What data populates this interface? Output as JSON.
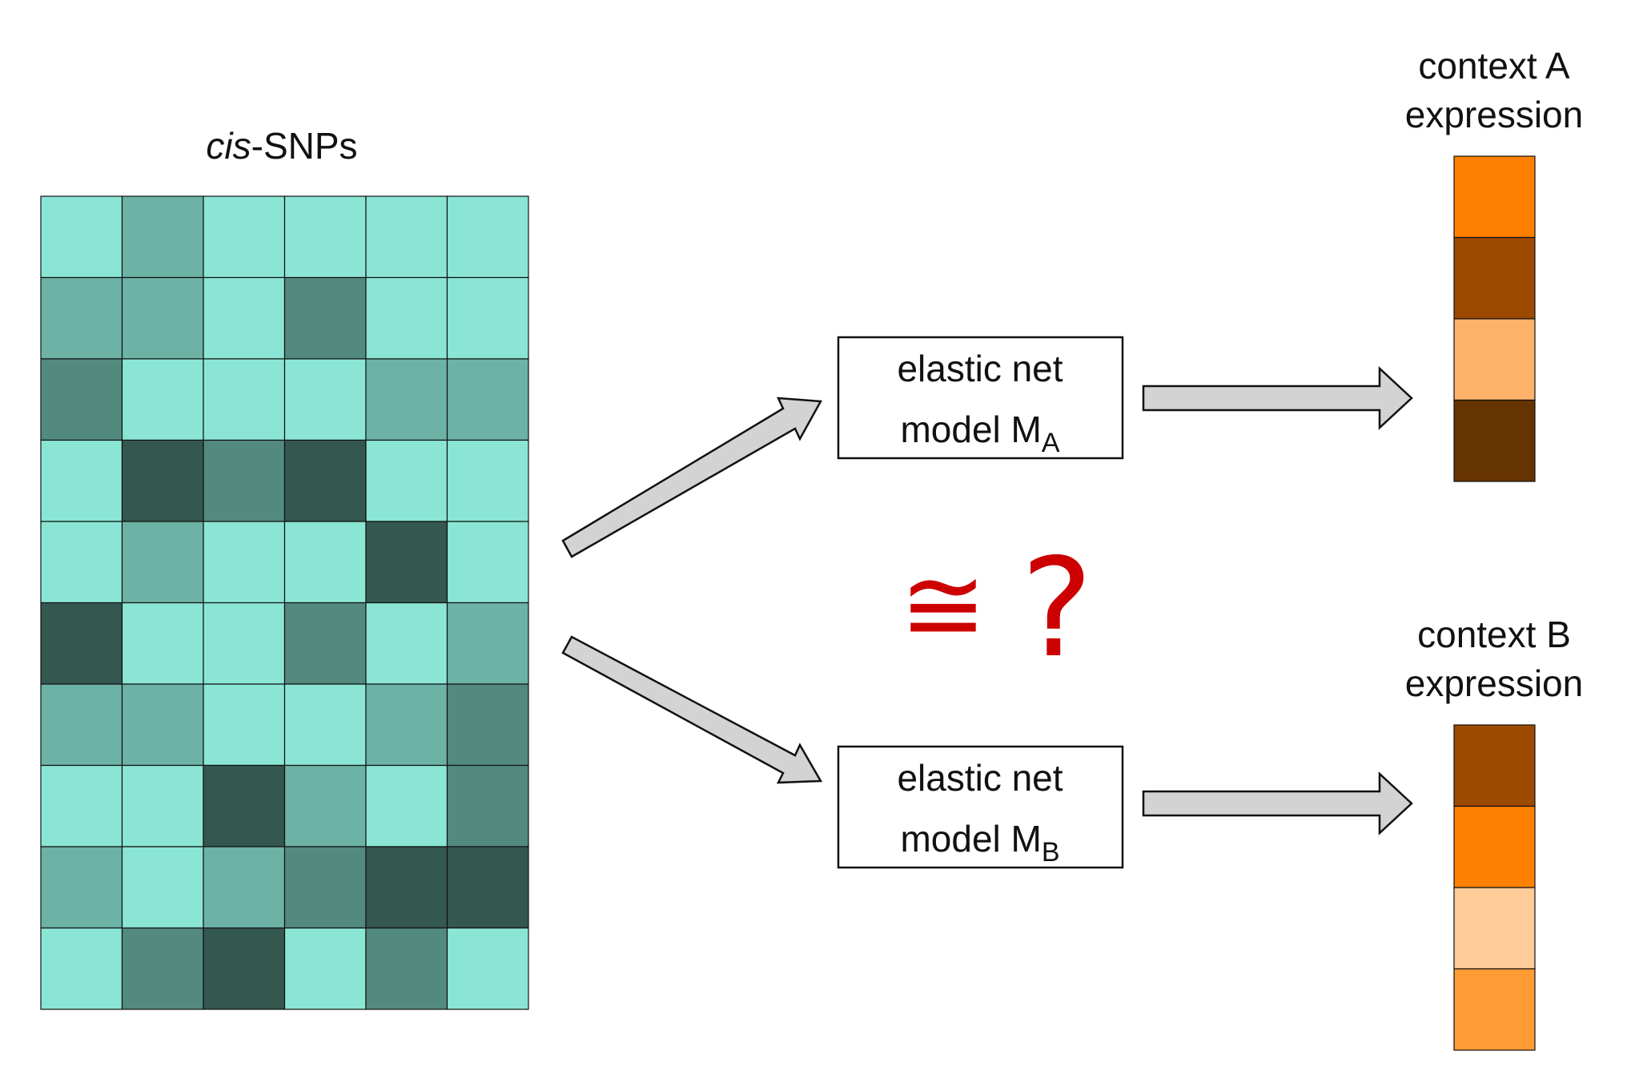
{
  "snp_block": {
    "title_italic": "cis",
    "title_rest": "-SNPs",
    "rows": 10,
    "cols": 6,
    "shade_colors": [
      "#8ae5d4",
      "#6cb3a5",
      "#538a7f",
      "#345850"
    ],
    "grid": [
      [
        0,
        1,
        0,
        0,
        0,
        0
      ],
      [
        1,
        1,
        0,
        2,
        0,
        0
      ],
      [
        2,
        0,
        0,
        0,
        1,
        1
      ],
      [
        0,
        3,
        2,
        3,
        0,
        0
      ],
      [
        0,
        1,
        0,
        0,
        3,
        0
      ],
      [
        3,
        0,
        0,
        2,
        0,
        1
      ],
      [
        1,
        1,
        0,
        0,
        1,
        2
      ],
      [
        0,
        0,
        3,
        1,
        0,
        2
      ],
      [
        1,
        0,
        1,
        2,
        3,
        3
      ],
      [
        0,
        2,
        3,
        0,
        2,
        0
      ]
    ]
  },
  "model_a": {
    "line1": "elastic net",
    "line2_main": "model M",
    "line2_sub": "A"
  },
  "model_b": {
    "line1": "elastic net",
    "line2_main": "model M",
    "line2_sub": "B"
  },
  "comparison": {
    "symbol": "≅",
    "question": "?",
    "color": "#cc0000"
  },
  "context_a": {
    "line1": "context A",
    "line2": "expression",
    "cells": [
      "#ff8000",
      "#9b4a00",
      "#ffb26a",
      "#663400"
    ]
  },
  "context_b": {
    "line1": "context B",
    "line2": "expression",
    "cells": [
      "#9b4a00",
      "#ff8000",
      "#ffcb98",
      "#ff9b35"
    ]
  },
  "arrow_color": "#d3d3d3"
}
